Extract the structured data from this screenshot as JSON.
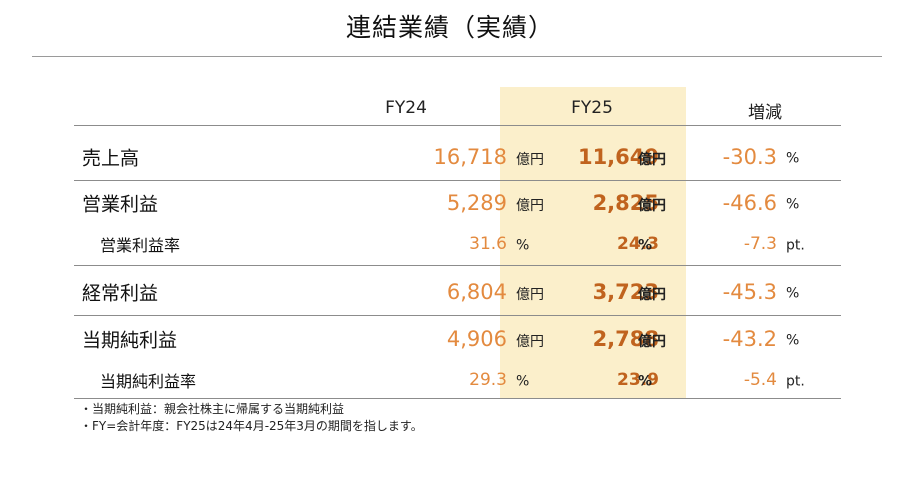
{
  "title": "連結業績（実績）",
  "headers": {
    "fy24": "FY24",
    "fy25": "FY25",
    "diff": "増減"
  },
  "rows": [
    {
      "label": "売上高",
      "fy24": "16,718",
      "fy24_unit": "億円",
      "fy25": "11,649",
      "fy25_unit": "億円",
      "diff": "-30.3",
      "diff_unit": "%"
    },
    {
      "label": "営業利益",
      "fy24": "5,289",
      "fy24_unit": "億円",
      "fy25": "2,825",
      "fy25_unit": "億円",
      "diff": "-46.6",
      "diff_unit": "%"
    },
    {
      "label": "営業利益率",
      "fy24": "31.6",
      "fy24_unit": "%",
      "fy25": "24.3",
      "fy25_unit": "%",
      "diff": "-7.3",
      "diff_unit": "pt."
    },
    {
      "label": "経常利益",
      "fy24": "6,804",
      "fy24_unit": "億円",
      "fy25": "3,723",
      "fy25_unit": "億円",
      "diff": "-45.3",
      "diff_unit": "%"
    },
    {
      "label": "当期純利益",
      "fy24": "4,906",
      "fy24_unit": "億円",
      "fy25": "2,788",
      "fy25_unit": "億円",
      "diff": "-43.2",
      "diff_unit": "%"
    },
    {
      "label": "当期純利益率",
      "fy24": "29.3",
      "fy24_unit": "%",
      "fy25": "23.9",
      "fy25_unit": "%",
      "diff": "-5.4",
      "diff_unit": "pt."
    }
  ],
  "notes": [
    "・当期純利益：親会社株主に帰属する当期純利益",
    "・FY=会計年度：FY25は24年4月-25年3月の期間を指します。"
  ],
  "colors": {
    "fy25_band": "#fbefcb",
    "fy24_value": "#e38a3f",
    "fy25_value": "#c0631e"
  }
}
